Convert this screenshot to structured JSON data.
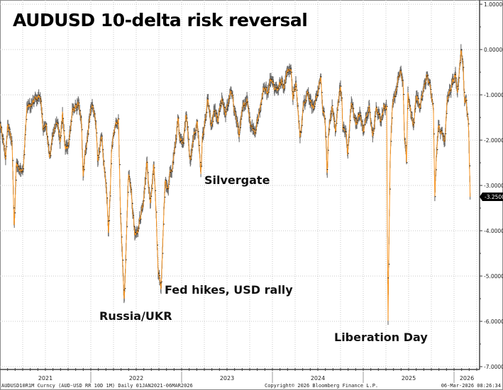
{
  "chart_data": {
    "type": "line",
    "title": "AUDUSD 10-delta risk reversal",
    "ylim": [
      -7.2,
      1.1
    ],
    "xlim": [
      2021.0,
      2026.27
    ],
    "grid": true,
    "y_ticks": [
      {
        "value": 1,
        "label": "1.0000"
      },
      {
        "value": 0,
        "label": "0.0000"
      },
      {
        "value": -1,
        "label": "-1.0000"
      },
      {
        "value": -2,
        "label": "-2.0000"
      },
      {
        "value": -3,
        "label": "-3.0000"
      },
      {
        "value": -4,
        "label": "-4.0000"
      },
      {
        "value": -5,
        "label": "-5.0000"
      },
      {
        "value": -6,
        "label": "-6.0000"
      },
      {
        "value": -7,
        "label": "-7.0000"
      }
    ],
    "x_labels": [
      {
        "year": 2021,
        "label": "2021"
      },
      {
        "year": 2022,
        "label": "2022"
      },
      {
        "year": 2023,
        "label": "2023"
      },
      {
        "year": 2024,
        "label": "2024"
      },
      {
        "year": 2025,
        "label": "2025"
      },
      {
        "year": 2026,
        "label": "2026"
      }
    ],
    "last_value": {
      "value": -3.25,
      "label": "-3.2500"
    },
    "series_color": "#f7931e",
    "bar_color": "#555555",
    "annotations": [
      {
        "label": "Russia/UKR",
        "t": 2022.367,
        "v": -5.63
      },
      {
        "label": "Fed hikes, USD rally",
        "t": 2022.773,
        "v": -5.27
      },
      {
        "label": "Silvergate",
        "t": 2023.211,
        "v": -2.81
      },
      {
        "label": "Liberation Day",
        "t": 2025.273,
        "v": -5.98
      }
    ],
    "series": [
      {
        "name": "AUDUSD10R1M Curncy",
        "points": [
          [
            2021.0,
            -1.64
          ],
          [
            2021.039,
            -2.11
          ],
          [
            2021.063,
            -2.39
          ],
          [
            2021.086,
            -1.64
          ],
          [
            2021.109,
            -1.88
          ],
          [
            2021.133,
            -2.0
          ],
          [
            2021.156,
            -4.02
          ],
          [
            2021.18,
            -2.5
          ],
          [
            2021.219,
            -2.66
          ],
          [
            2021.258,
            -2.55
          ],
          [
            2021.297,
            -1.25
          ],
          [
            2021.352,
            -1.25
          ],
          [
            2021.391,
            -1.09
          ],
          [
            2021.445,
            -1.02
          ],
          [
            2021.469,
            -1.72
          ],
          [
            2021.508,
            -1.72
          ],
          [
            2021.547,
            -2.34
          ],
          [
            2021.586,
            -1.88
          ],
          [
            2021.625,
            -1.48
          ],
          [
            2021.664,
            -2.03
          ],
          [
            2021.688,
            -1.41
          ],
          [
            2021.719,
            -2.23
          ],
          [
            2021.758,
            -2.03
          ],
          [
            2021.797,
            -1.38
          ],
          [
            2021.859,
            -1.2
          ],
          [
            2021.898,
            -1.67
          ],
          [
            2021.914,
            -2.81
          ],
          [
            2021.938,
            -2.34
          ],
          [
            2021.977,
            -1.72
          ],
          [
            2022.016,
            -1.14
          ],
          [
            2022.055,
            -1.56
          ],
          [
            2022.078,
            -2.5
          ],
          [
            2022.117,
            -1.88
          ],
          [
            2022.148,
            -2.66
          ],
          [
            2022.172,
            -3.13
          ],
          [
            2022.195,
            -4.02
          ],
          [
            2022.227,
            -2.34
          ],
          [
            2022.266,
            -1.72
          ],
          [
            2022.305,
            -1.52
          ],
          [
            2022.328,
            -3.8
          ],
          [
            2022.352,
            -4.69
          ],
          [
            2022.367,
            -5.63
          ],
          [
            2022.391,
            -4.22
          ],
          [
            2022.414,
            -2.61
          ],
          [
            2022.445,
            -3.13
          ],
          [
            2022.484,
            -4.06
          ],
          [
            2022.523,
            -3.91
          ],
          [
            2022.578,
            -3.39
          ],
          [
            2022.617,
            -2.5
          ],
          [
            2022.656,
            -3.44
          ],
          [
            2022.695,
            -2.61
          ],
          [
            2022.719,
            -3.59
          ],
          [
            2022.742,
            -4.84
          ],
          [
            2022.773,
            -5.27
          ],
          [
            2022.797,
            -4.06
          ],
          [
            2022.82,
            -2.86
          ],
          [
            2022.852,
            -3.17
          ],
          [
            2022.875,
            -2.61
          ],
          [
            2022.898,
            -2.61
          ],
          [
            2022.938,
            -1.88
          ],
          [
            2022.961,
            -1.52
          ],
          [
            2022.977,
            -1.98
          ],
          [
            2023.016,
            -2.08
          ],
          [
            2023.047,
            -1.45
          ],
          [
            2023.07,
            -1.83
          ],
          [
            2023.094,
            -2.5
          ],
          [
            2023.133,
            -1.98
          ],
          [
            2023.172,
            -1.56
          ],
          [
            2023.203,
            -2.39
          ],
          [
            2023.211,
            -2.81
          ],
          [
            2023.227,
            -1.98
          ],
          [
            2023.266,
            -1.52
          ],
          [
            2023.289,
            -1.14
          ],
          [
            2023.328,
            -1.77
          ],
          [
            2023.359,
            -1.36
          ],
          [
            2023.398,
            -1.61
          ],
          [
            2023.445,
            -1.05
          ],
          [
            2023.484,
            -1.45
          ],
          [
            2023.539,
            -0.94
          ],
          [
            2023.578,
            -1.25
          ],
          [
            2023.633,
            -1.88
          ],
          [
            2023.672,
            -1.36
          ],
          [
            2023.719,
            -1.05
          ],
          [
            2023.758,
            -1.61
          ],
          [
            2023.813,
            -1.83
          ],
          [
            2023.867,
            -1.2
          ],
          [
            2023.906,
            -0.83
          ],
          [
            2023.953,
            -0.94
          ],
          [
            2023.992,
            -0.58
          ],
          [
            2024.047,
            -0.89
          ],
          [
            2024.102,
            -0.63
          ],
          [
            2024.125,
            -0.94
          ],
          [
            2024.148,
            -0.52
          ],
          [
            2024.203,
            -0.42
          ],
          [
            2024.227,
            -1.05
          ],
          [
            2024.258,
            -0.78
          ],
          [
            2024.305,
            -1.98
          ],
          [
            2024.336,
            -1.3
          ],
          [
            2024.383,
            -0.89
          ],
          [
            2024.438,
            -1.2
          ],
          [
            2024.461,
            -1.36
          ],
          [
            2024.492,
            -1.05
          ],
          [
            2024.516,
            -0.73
          ],
          [
            2024.531,
            -0.63
          ],
          [
            2024.555,
            -1.41
          ],
          [
            2024.578,
            -1.52
          ],
          [
            2024.594,
            -2.14
          ],
          [
            2024.602,
            -2.92
          ],
          [
            2024.617,
            -1.88
          ],
          [
            2024.656,
            -1.2
          ],
          [
            2024.695,
            -1.83
          ],
          [
            2024.734,
            -0.98
          ],
          [
            2024.75,
            -0.78
          ],
          [
            2024.766,
            -1.2
          ],
          [
            2024.773,
            -1.72
          ],
          [
            2024.813,
            -1.88
          ],
          [
            2024.828,
            -2.34
          ],
          [
            2024.867,
            -1.2
          ],
          [
            2024.922,
            -1.61
          ],
          [
            2024.961,
            -1.45
          ],
          [
            2025.0,
            -1.77
          ],
          [
            2025.063,
            -1.2
          ],
          [
            2025.102,
            -1.92
          ],
          [
            2025.141,
            -1.36
          ],
          [
            2025.195,
            -1.56
          ],
          [
            2025.234,
            -1.25
          ],
          [
            2025.258,
            -1.3
          ],
          [
            2025.266,
            -4.22
          ],
          [
            2025.273,
            -5.98
          ],
          [
            2025.297,
            -2.34
          ],
          [
            2025.32,
            -1.3
          ],
          [
            2025.352,
            -0.98
          ],
          [
            2025.375,
            -0.73
          ],
          [
            2025.398,
            -0.52
          ],
          [
            2025.438,
            -0.58
          ],
          [
            2025.453,
            -1.88
          ],
          [
            2025.477,
            -2.45
          ],
          [
            2025.492,
            -1.0
          ],
          [
            2025.531,
            -1.45
          ],
          [
            2025.555,
            -1.67
          ],
          [
            2025.586,
            -0.98
          ],
          [
            2025.625,
            -1.3
          ],
          [
            2025.664,
            -0.89
          ],
          [
            2025.703,
            -0.58
          ],
          [
            2025.727,
            -0.78
          ],
          [
            2025.75,
            -0.94
          ],
          [
            2025.773,
            -1.25
          ],
          [
            2025.781,
            -2.23
          ],
          [
            2025.789,
            -3.28
          ],
          [
            2025.805,
            -2.34
          ],
          [
            2025.828,
            -1.61
          ],
          [
            2025.859,
            -1.83
          ],
          [
            2025.898,
            -1.98
          ],
          [
            2025.922,
            -1.09
          ],
          [
            2025.945,
            -0.98
          ],
          [
            2025.977,
            -0.78
          ],
          [
            2026.016,
            -0.58
          ],
          [
            2026.039,
            -1.09
          ],
          [
            2026.063,
            -0.36
          ],
          [
            2026.078,
            0.05
          ],
          [
            2026.102,
            -0.42
          ],
          [
            2026.117,
            -1.2
          ],
          [
            2026.133,
            -0.98
          ],
          [
            2026.141,
            -1.36
          ],
          [
            2026.156,
            -1.52
          ],
          [
            2026.164,
            -2.03
          ],
          [
            2026.172,
            -2.8
          ],
          [
            2026.18,
            -3.25
          ]
        ]
      }
    ]
  },
  "footer": {
    "ticker": "AUDUSD10R1M Curncy (AUD-USD RR 10D 1M) Daily 01JAN2021-06MAR2026",
    "copyright": "Copyright© 2026 Bloomberg Finance L.P.",
    "timestamp": "06-Mar-2026 08:26:34"
  }
}
